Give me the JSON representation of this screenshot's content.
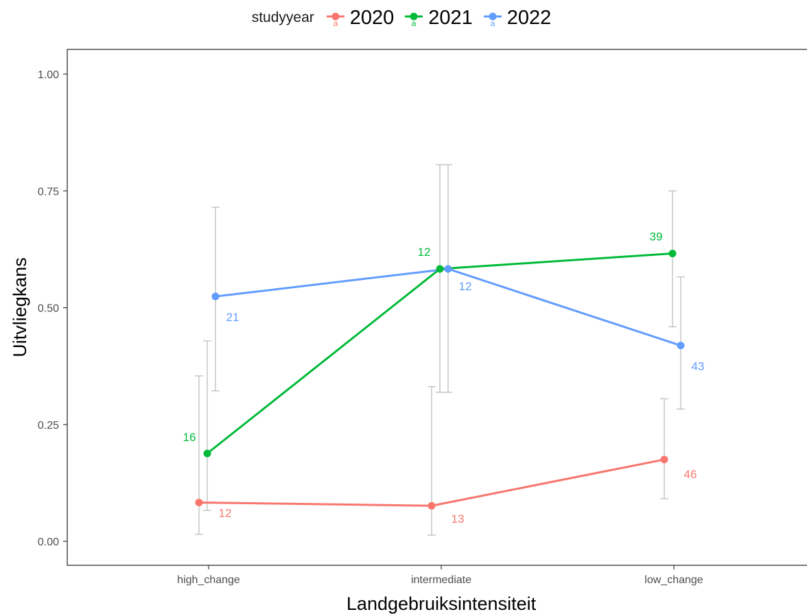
{
  "chart_data": {
    "type": "line",
    "xlabel": "Landgebruiksintensiteit",
    "ylabel": "Uitvliegkans",
    "categories": [
      "high_change",
      "intermediate",
      "low_change"
    ],
    "ylim": [
      0,
      1
    ],
    "yticks": [
      "0.00",
      "0.25",
      "0.50",
      "0.75",
      "1.00"
    ],
    "grid": false,
    "legend": {
      "title": "studyyear",
      "position": "top",
      "symbol_text": "a"
    },
    "series": [
      {
        "name": "2020",
        "color": "#F8766D",
        "values": [
          0.083,
          0.076,
          0.175
        ],
        "ci_low": [
          0.015,
          0.013,
          0.091
        ],
        "ci_high": [
          0.354,
          0.331,
          0.305
        ],
        "labels": [
          "12",
          "13",
          "46"
        ]
      },
      {
        "name": "2021",
        "color": "#00BA38",
        "values": [
          0.188,
          0.583,
          0.616
        ],
        "ci_low": [
          0.066,
          0.319,
          0.459
        ],
        "ci_high": [
          0.429,
          0.806,
          0.75
        ],
        "labels": [
          "16",
          "12",
          "39"
        ]
      },
      {
        "name": "2022",
        "color": "#619CFF",
        "values": [
          0.524,
          0.583,
          0.419
        ],
        "ci_low": [
          0.322,
          0.319,
          0.283
        ],
        "ci_high": [
          0.715,
          0.806,
          0.566
        ],
        "labels": [
          "21",
          "12",
          "43"
        ]
      }
    ],
    "errorbar_color": "#BEBEBE"
  }
}
